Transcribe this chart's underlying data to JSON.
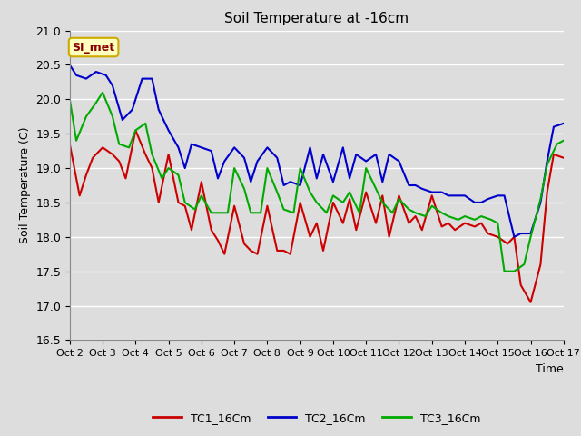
{
  "title": "Soil Temperature at -16cm",
  "xlabel": "Time",
  "ylabel": "Soil Temperature (C)",
  "ylim": [
    16.5,
    21.0
  ],
  "xlim": [
    0,
    15
  ],
  "xtick_labels": [
    "Oct 2",
    "Oct 3",
    "Oct 4",
    "Oct 5",
    "Oct 6",
    "Oct 7",
    "Oct 8",
    "Oct 9",
    "Oct 10",
    "Oct 11",
    "Oct 12",
    "Oct 13",
    "Oct 14",
    "Oct 15",
    "Oct 16",
    "Oct 17"
  ],
  "annotation_text": "SI_met",
  "annotation_bg": "#ffffc0",
  "annotation_border": "#ccaa00",
  "bg_color": "#dddddd",
  "plot_bg": "#dddddd",
  "grid_color": "#ffffff",
  "tc1_color": "#cc0000",
  "tc2_color": "#0000cc",
  "tc3_color": "#00aa00",
  "tc1_label": "TC1_16Cm",
  "tc2_label": "TC2_16Cm",
  "tc3_label": "TC3_16Cm",
  "tc1_x": [
    0,
    0.3,
    0.5,
    0.7,
    1.0,
    1.3,
    1.5,
    1.7,
    2.0,
    2.3,
    2.5,
    2.7,
    3.0,
    3.3,
    3.5,
    3.7,
    4.0,
    4.3,
    4.5,
    4.7,
    5.0,
    5.3,
    5.5,
    5.7,
    6.0,
    6.3,
    6.5,
    6.7,
    7.0,
    7.3,
    7.5,
    7.7,
    8.0,
    8.3,
    8.5,
    8.7,
    9.0,
    9.3,
    9.5,
    9.7,
    10.0,
    10.3,
    10.5,
    10.7,
    11.0,
    11.3,
    11.5,
    11.7,
    12.0,
    12.3,
    12.5,
    12.7,
    13.0,
    13.3,
    13.5,
    13.7,
    14.0,
    14.3,
    14.5,
    14.7,
    15.0
  ],
  "tc1_y": [
    19.35,
    18.6,
    18.9,
    19.15,
    19.3,
    19.2,
    19.1,
    18.85,
    19.55,
    19.2,
    19.0,
    18.5,
    19.2,
    18.5,
    18.45,
    18.1,
    18.8,
    18.1,
    17.95,
    17.75,
    18.45,
    17.9,
    17.8,
    17.75,
    18.45,
    17.8,
    17.8,
    17.75,
    18.5,
    18.0,
    18.2,
    17.8,
    18.5,
    18.2,
    18.55,
    18.1,
    18.65,
    18.2,
    18.6,
    18.0,
    18.6,
    18.2,
    18.3,
    18.1,
    18.6,
    18.15,
    18.2,
    18.1,
    18.2,
    18.15,
    18.2,
    18.05,
    18.0,
    17.9,
    18.0,
    17.3,
    17.05,
    17.6,
    18.65,
    19.2,
    19.15
  ],
  "tc2_x": [
    0,
    0.2,
    0.5,
    0.8,
    1.1,
    1.3,
    1.6,
    1.9,
    2.2,
    2.5,
    2.7,
    3.0,
    3.3,
    3.5,
    3.7,
    4.0,
    4.3,
    4.5,
    4.7,
    5.0,
    5.3,
    5.5,
    5.7,
    6.0,
    6.3,
    6.5,
    6.7,
    7.0,
    7.3,
    7.5,
    7.7,
    8.0,
    8.3,
    8.5,
    8.7,
    9.0,
    9.3,
    9.5,
    9.7,
    10.0,
    10.3,
    10.5,
    10.7,
    11.0,
    11.3,
    11.5,
    11.7,
    12.0,
    12.3,
    12.5,
    12.7,
    13.0,
    13.2,
    13.5,
    13.7,
    14.0,
    14.3,
    14.5,
    14.7,
    15.0
  ],
  "tc2_y": [
    20.5,
    20.35,
    20.3,
    20.4,
    20.35,
    20.2,
    19.7,
    19.85,
    20.3,
    20.3,
    19.85,
    19.55,
    19.3,
    19.0,
    19.35,
    19.3,
    19.25,
    18.85,
    19.1,
    19.3,
    19.15,
    18.8,
    19.1,
    19.3,
    19.15,
    18.75,
    18.8,
    18.75,
    19.3,
    18.85,
    19.2,
    18.8,
    19.3,
    18.85,
    19.2,
    19.1,
    19.2,
    18.8,
    19.2,
    19.1,
    18.75,
    18.75,
    18.7,
    18.65,
    18.65,
    18.6,
    18.6,
    18.6,
    18.5,
    18.5,
    18.55,
    18.6,
    18.6,
    18.0,
    18.05,
    18.05,
    18.5,
    19.1,
    19.6,
    19.65
  ],
  "tc3_x": [
    0,
    0.2,
    0.5,
    0.8,
    1.0,
    1.3,
    1.5,
    1.8,
    2.0,
    2.3,
    2.5,
    2.8,
    3.0,
    3.3,
    3.5,
    3.8,
    4.0,
    4.3,
    4.5,
    4.8,
    5.0,
    5.3,
    5.5,
    5.8,
    6.0,
    6.3,
    6.5,
    6.8,
    7.0,
    7.3,
    7.5,
    7.8,
    8.0,
    8.3,
    8.5,
    8.8,
    9.0,
    9.3,
    9.5,
    9.8,
    10.0,
    10.3,
    10.5,
    10.8,
    11.0,
    11.3,
    11.5,
    11.8,
    12.0,
    12.3,
    12.5,
    12.8,
    13.0,
    13.2,
    13.5,
    13.8,
    14.0,
    14.3,
    14.5,
    14.8,
    15.0
  ],
  "tc3_y": [
    20.0,
    19.4,
    19.75,
    19.95,
    20.1,
    19.75,
    19.35,
    19.3,
    19.55,
    19.65,
    19.2,
    18.85,
    19.0,
    18.9,
    18.5,
    18.4,
    18.6,
    18.35,
    18.35,
    18.35,
    19.0,
    18.7,
    18.35,
    18.35,
    19.0,
    18.65,
    18.4,
    18.35,
    19.0,
    18.65,
    18.5,
    18.35,
    18.6,
    18.5,
    18.65,
    18.35,
    19.0,
    18.7,
    18.5,
    18.35,
    18.55,
    18.4,
    18.35,
    18.3,
    18.45,
    18.35,
    18.3,
    18.25,
    18.3,
    18.25,
    18.3,
    18.25,
    18.2,
    17.5,
    17.5,
    17.6,
    18.0,
    18.55,
    19.05,
    19.35,
    19.4
  ]
}
